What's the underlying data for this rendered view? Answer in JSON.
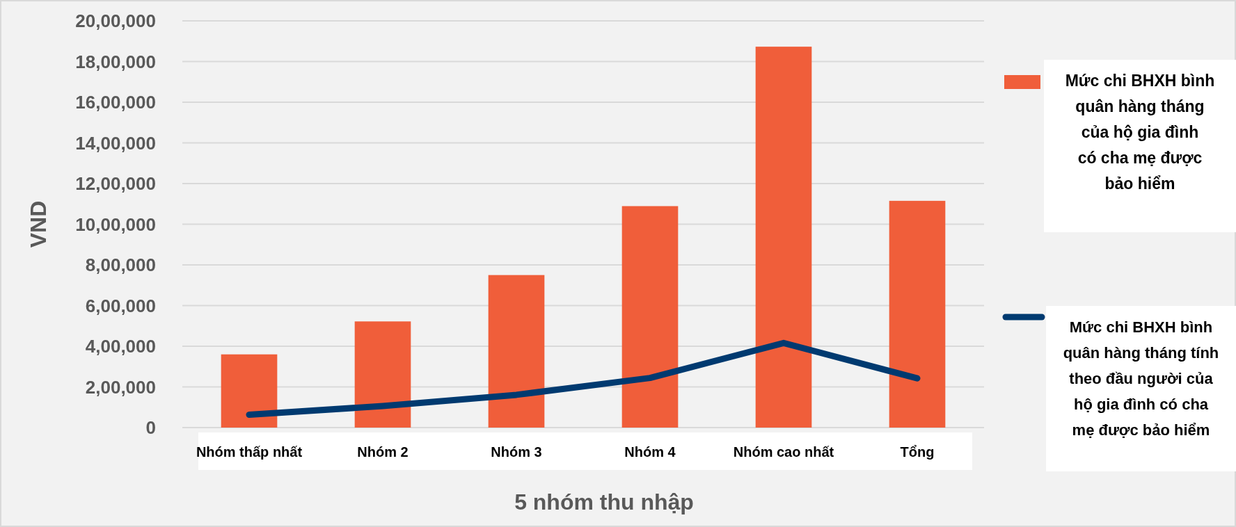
{
  "chart_data": {
    "type": "bar",
    "xlabel": "5 nhóm thu nhập",
    "ylabel": "VND",
    "categories": [
      "Nhóm thấp nhất",
      "Nhóm 2",
      "Nhóm 3",
      "Nhóm 4",
      "Nhóm cao nhất",
      "Tổng"
    ],
    "series": [
      {
        "name": "Mức chi BHXH bình quân hàng tháng của hộ gia đình có cha mẹ được bảo hiểm",
        "color": "#f05e3a",
        "values": [
          360000,
          522000,
          750000,
          1089000,
          1873000,
          1115000
        ]
      },
      {
        "name": "Mức chi BHXH bình quân hàng tháng tính theo đầu người của hộ gia đình có cha mẹ được bảo hiểm",
        "type": "line",
        "color": "#003a70",
        "values": [
          63000,
          106000,
          161000,
          244000,
          416000,
          242000
        ]
      }
    ],
    "ylim": [
      0,
      2000000
    ],
    "yticks": [
      {
        "value": 0,
        "label": "0"
      },
      {
        "value": 200000,
        "label": "2,00,000"
      },
      {
        "value": 400000,
        "label": "4,00,000"
      },
      {
        "value": 600000,
        "label": "6,00,000"
      },
      {
        "value": 800000,
        "label": "8,00,000"
      },
      {
        "value": 1000000,
        "label": "10,00,000"
      },
      {
        "value": 1200000,
        "label": "12,00,000"
      },
      {
        "value": 1400000,
        "label": "14,00,000"
      },
      {
        "value": 1600000,
        "label": "16,00,000"
      },
      {
        "value": 1800000,
        "label": "18,00,000"
      },
      {
        "value": 2000000,
        "label": "20,00,000"
      }
    ],
    "grid": "y",
    "legend": "right"
  }
}
